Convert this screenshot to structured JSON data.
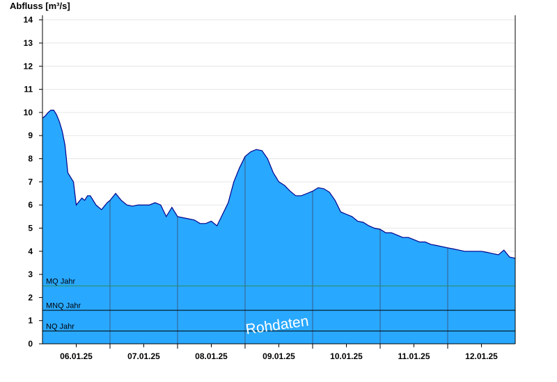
{
  "chart_data": {
    "type": "area",
    "title": "",
    "ylabel": "Abfluss [m³/s]",
    "xlabel": "",
    "ylim": [
      0,
      14.2
    ],
    "yticks": [
      0,
      1,
      2,
      3,
      4,
      5,
      6,
      7,
      8,
      9,
      10,
      11,
      12,
      13,
      14
    ],
    "xlim_hours": [
      0,
      168
    ],
    "day_labels": [
      "06.01.25",
      "07.01.25",
      "08.01.25",
      "09.01.25",
      "10.01.25",
      "11.01.25",
      "12.01.25"
    ],
    "grid": "horizontal",
    "fill_color": "#29a8ff",
    "line_color": "#00008b",
    "series": [
      {
        "name": "Abfluss",
        "x_hours": [
          0,
          1,
          2,
          3,
          4,
          5,
          6,
          7,
          8,
          9,
          10,
          11,
          12,
          14,
          15,
          16,
          17,
          18,
          19,
          20,
          21,
          22,
          23,
          24,
          26,
          28,
          30,
          32,
          34,
          36,
          38,
          40,
          42,
          44,
          46,
          48,
          50,
          52,
          54,
          56,
          58,
          60,
          62,
          64,
          66,
          68,
          70,
          72,
          74,
          76,
          78,
          80,
          82,
          84,
          86,
          88,
          90,
          92,
          94,
          96,
          98,
          100,
          102,
          104,
          106,
          108,
          110,
          112,
          114,
          116,
          118,
          120,
          122,
          124,
          126,
          128,
          130,
          132,
          134,
          136,
          138,
          140,
          142,
          144,
          146,
          148,
          150,
          152,
          154,
          156,
          158,
          160,
          162,
          164,
          166,
          168
        ],
        "values": [
          9.75,
          9.85,
          10.0,
          10.1,
          10.1,
          9.9,
          9.6,
          9.2,
          8.6,
          7.4,
          7.2,
          7.0,
          6.0,
          6.3,
          6.2,
          6.4,
          6.4,
          6.2,
          6.0,
          5.9,
          5.8,
          5.95,
          6.1,
          6.2,
          6.5,
          6.2,
          6.0,
          5.95,
          6.0,
          6.0,
          6.0,
          6.1,
          6.0,
          5.5,
          5.9,
          5.5,
          5.45,
          5.4,
          5.35,
          5.2,
          5.2,
          5.3,
          5.1,
          5.6,
          6.1,
          7.0,
          7.6,
          8.1,
          8.3,
          8.4,
          8.35,
          8.0,
          7.4,
          7.0,
          6.85,
          6.6,
          6.4,
          6.4,
          6.5,
          6.6,
          6.75,
          6.7,
          6.55,
          6.2,
          5.7,
          5.6,
          5.5,
          5.3,
          5.25,
          5.1,
          5.0,
          4.95,
          4.8,
          4.8,
          4.7,
          4.6,
          4.6,
          4.5,
          4.4,
          4.4,
          4.3,
          4.25,
          4.2,
          4.15,
          4.1,
          4.05,
          4.0,
          4.0,
          4.0,
          4.0,
          3.95,
          3.9,
          3.85,
          4.05,
          3.75,
          3.7
        ]
      }
    ],
    "reference_lines": [
      {
        "label": "MQ Jahr",
        "value": 2.5,
        "color": "#2e8b57"
      },
      {
        "label": "MNQ Jahr",
        "value": 1.45,
        "color": "#000000"
      },
      {
        "label": "NQ Jahr",
        "value": 0.55,
        "color": "#000000"
      }
    ],
    "watermark": "Rohdaten"
  }
}
